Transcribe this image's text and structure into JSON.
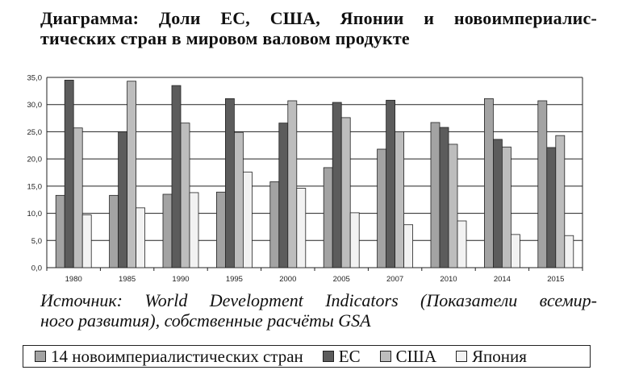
{
  "title_line1": "Диаграмма: Доли ЕС, США, Японии и новоимпериалис-",
  "title_line2": "тических стран в мировом валовом продукте",
  "source_line1": "Источник: World Development Indicators (Показатели всемир-",
  "source_line2": "ного развития), собственные расчёты GSA",
  "colors": {
    "group14": "#a3a3a3",
    "eu": "#5c5c5c",
    "usa": "#bdbdbd",
    "japan": "#f2f2f2"
  },
  "chart_data": {
    "type": "bar",
    "categories": [
      "1980",
      "1985",
      "1990",
      "1995",
      "2000",
      "2005",
      "2007",
      "2010",
      "2014",
      "2015"
    ],
    "series": [
      {
        "name": "14 новоимпериалистических стран",
        "values": [
          13.3,
          13.3,
          13.5,
          13.9,
          15.8,
          18.4,
          21.8,
          26.7,
          31.1,
          30.7
        ]
      },
      {
        "name": "ЕС",
        "values": [
          34.5,
          25.0,
          33.5,
          31.1,
          26.6,
          30.4,
          30.8,
          25.8,
          23.6,
          22.1
        ]
      },
      {
        "name": "США",
        "values": [
          25.7,
          34.3,
          26.6,
          24.9,
          30.7,
          27.6,
          25.0,
          22.7,
          22.2,
          24.3
        ]
      },
      {
        "name": "Япония",
        "values": [
          9.7,
          11.0,
          13.8,
          17.6,
          14.6,
          10.1,
          7.9,
          8.6,
          6.1,
          5.9
        ]
      }
    ],
    "ylim": [
      0,
      35
    ],
    "yticks": [
      "0,0",
      "5,0",
      "10,0",
      "15,0",
      "20,0",
      "25,0",
      "30,0",
      "35,0"
    ],
    "grid": true
  }
}
